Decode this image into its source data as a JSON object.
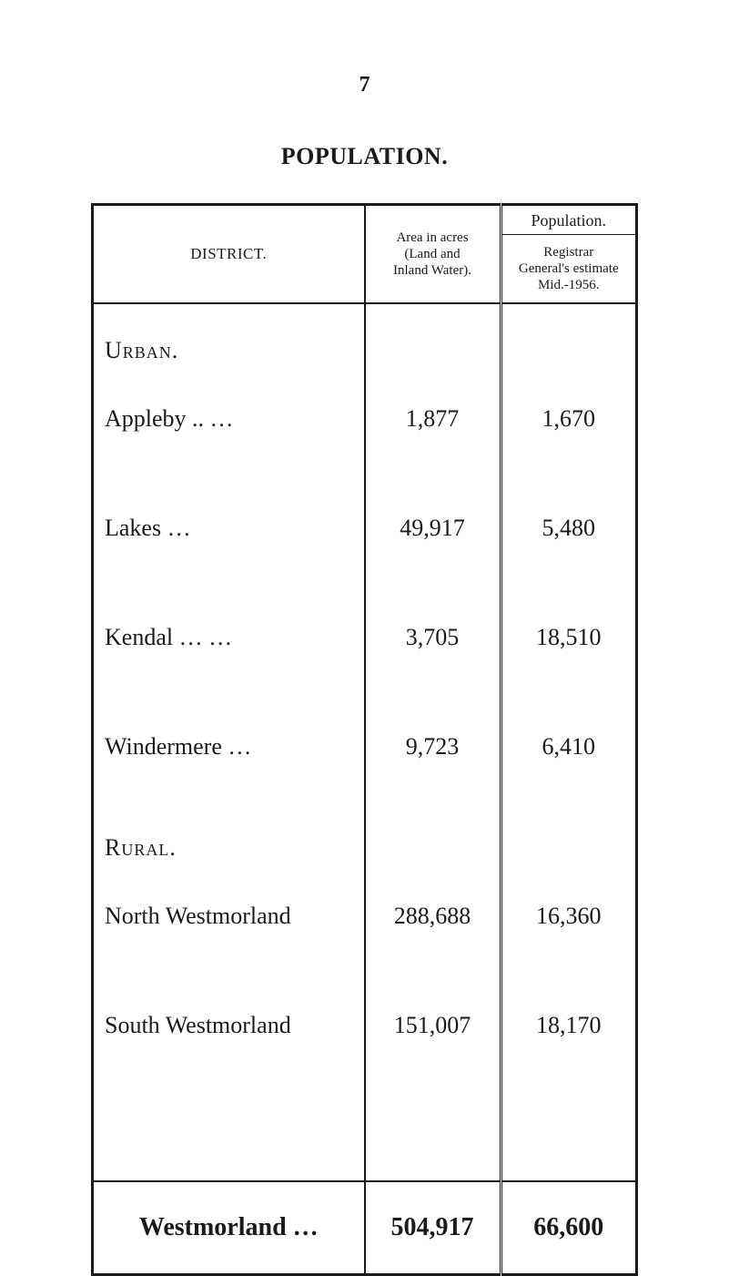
{
  "page_number": "7",
  "title": "POPULATION.",
  "headers": {
    "district": "DISTRICT.",
    "area_line1": "Area in acres",
    "area_line2": "(Land and",
    "area_line3": "Inland Water).",
    "population_super": "Population.",
    "pop_line1": "Registrar",
    "pop_line2": "General's estimate",
    "pop_line3": "Mid.-1956."
  },
  "sections": {
    "urban": "Urban.",
    "rural": "Rural."
  },
  "rows": {
    "appleby": {
      "name": "Appleby ..        …",
      "area": "1,877",
      "pop": "1,670"
    },
    "lakes": {
      "name": "Lakes                    …",
      "area": "49,917",
      "pop": "5,480"
    },
    "kendal": {
      "name": "Kendal     …        …",
      "area": "3,705",
      "pop": "18,510"
    },
    "windermere": {
      "name": "Windermere       …",
      "area": "9,723",
      "pop": "6,410"
    },
    "northw": {
      "name": "North Westmorland",
      "area": "288,688",
      "pop": "16,360"
    },
    "southw": {
      "name": "South Westmorland",
      "area": "151,007",
      "pop": "18,170"
    }
  },
  "total": {
    "name": "Westmorland …",
    "area": "504,917",
    "pop": "66,600"
  }
}
